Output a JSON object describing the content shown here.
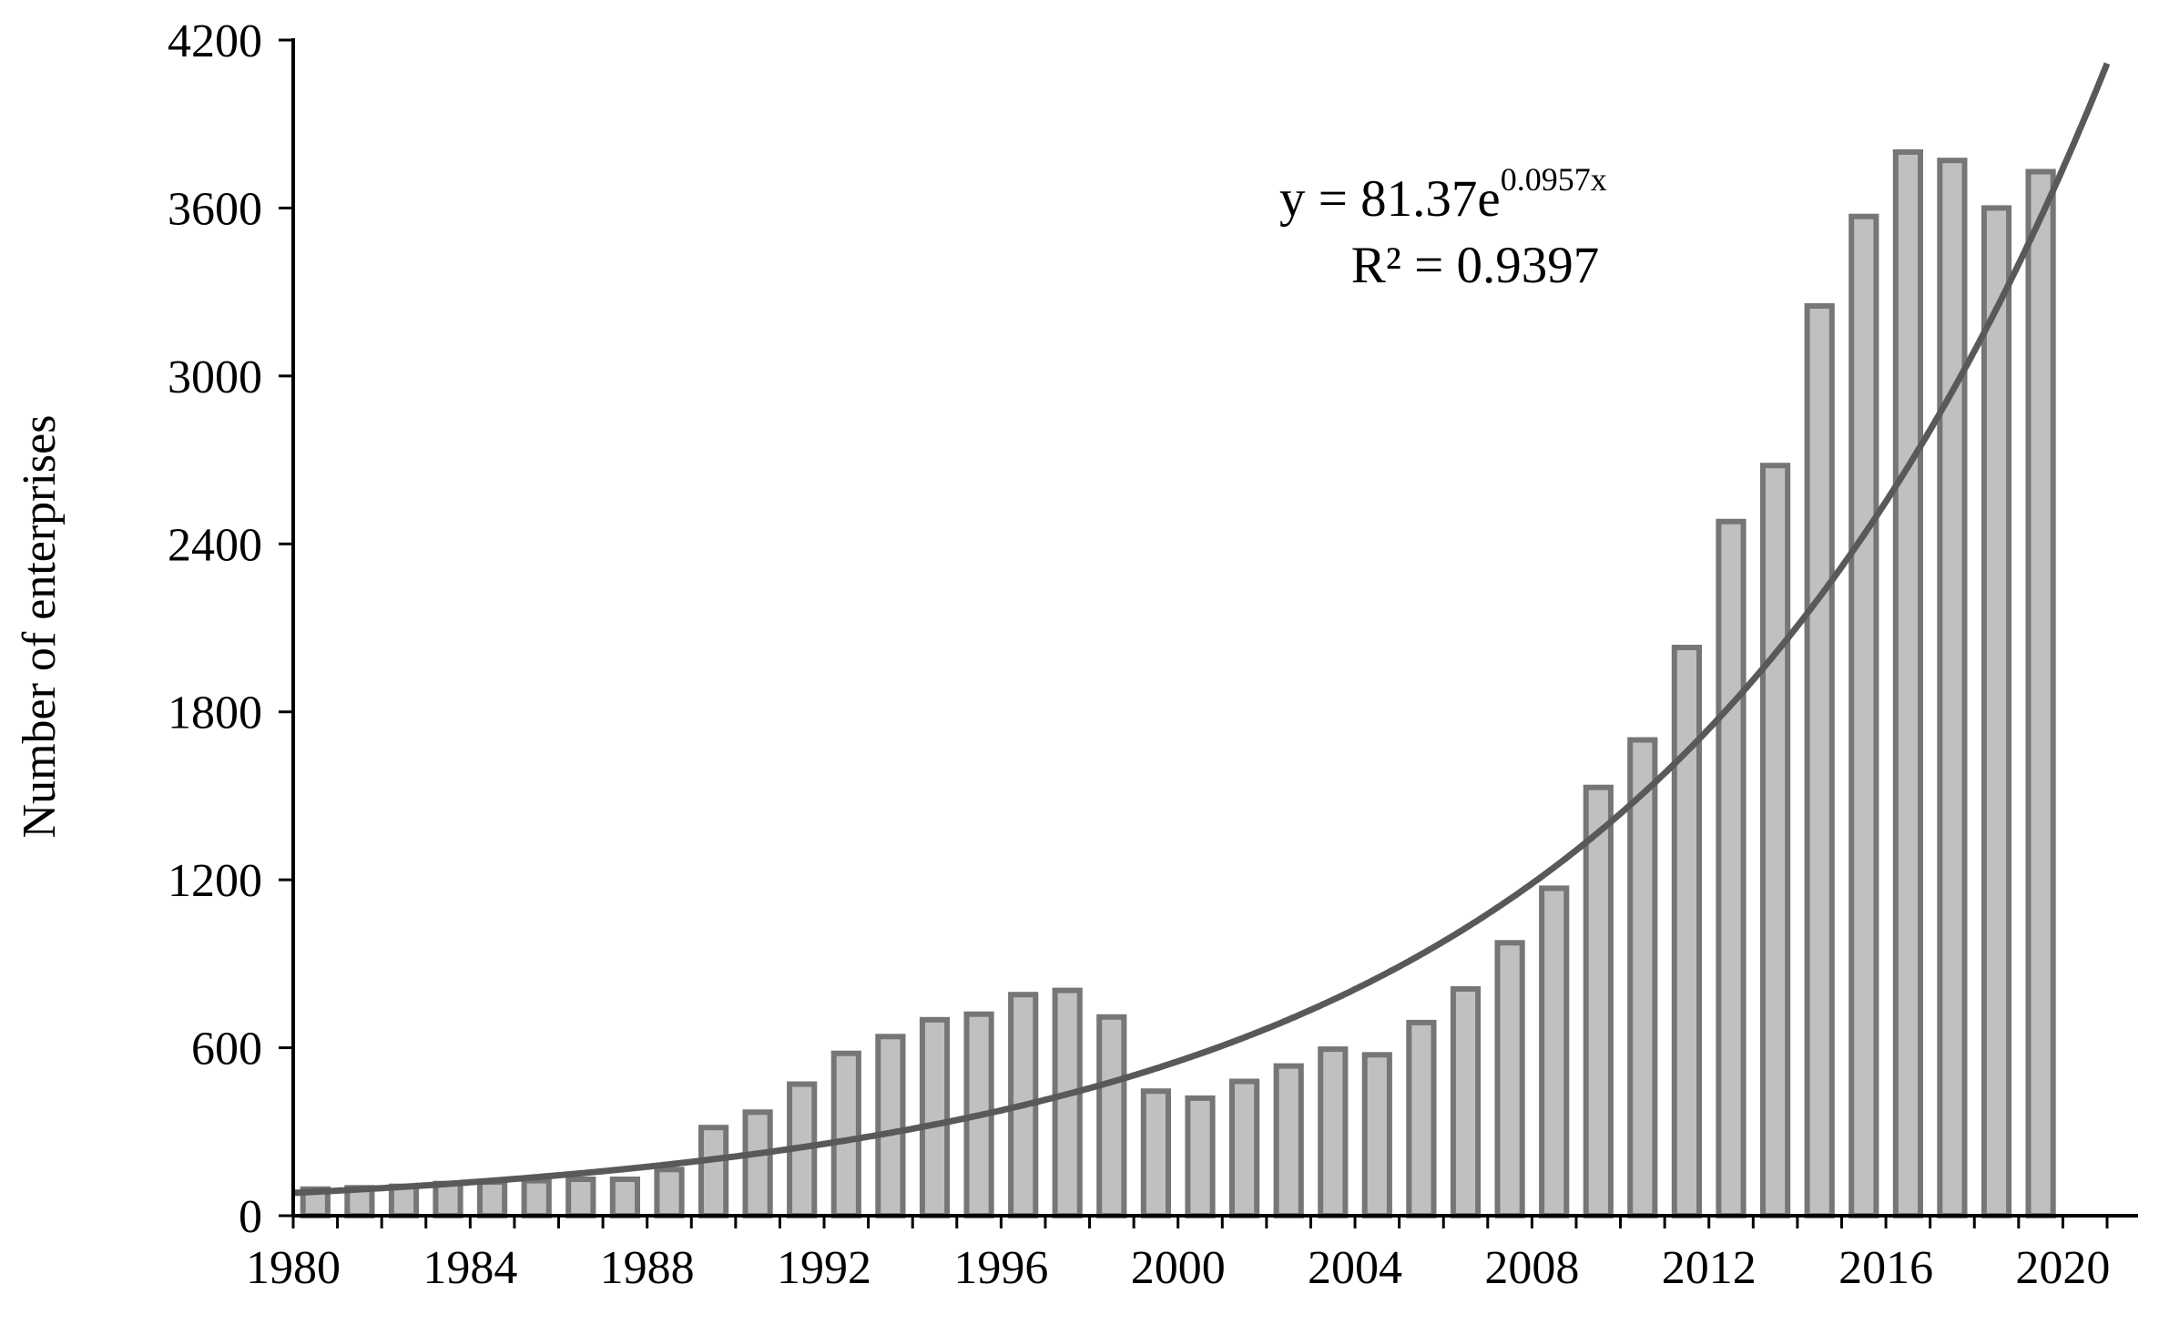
{
  "chart_data": {
    "type": "bar",
    "title": "",
    "xlabel": "",
    "ylabel": "Number of enterprises",
    "ylim": [
      0,
      4200
    ],
    "yticks": [
      0,
      600,
      1200,
      1800,
      2400,
      3000,
      3600,
      4200
    ],
    "xticks": [
      1980,
      1984,
      1988,
      1992,
      1996,
      2000,
      2004,
      2008,
      2012,
      2016,
      2020
    ],
    "xlim": [
      1980,
      2021
    ],
    "grid": false,
    "legend": "none",
    "categories": [
      1981,
      1982,
      1983,
      1984,
      1985,
      1986,
      1987,
      1988,
      1989,
      1990,
      1991,
      1992,
      1993,
      1994,
      1995,
      1996,
      1997,
      1998,
      1999,
      2000,
      2001,
      2002,
      2003,
      2004,
      2005,
      2006,
      2007,
      2008,
      2009,
      2010,
      2011,
      2012,
      2013,
      2014,
      2015,
      2016,
      2017,
      2018,
      2019,
      2020
    ],
    "values": [
      95,
      100,
      105,
      115,
      120,
      125,
      130,
      130,
      165,
      315,
      370,
      470,
      580,
      640,
      700,
      720,
      790,
      805,
      710,
      445,
      420,
      480,
      535,
      595,
      575,
      690,
      810,
      975,
      1170,
      1530,
      1700,
      2030,
      2480,
      2680,
      3250,
      3570,
      3800,
      3770,
      3600,
      3730
    ],
    "bar_fill": "#c0c0c0",
    "bar_stroke": "#767676",
    "trendline": {
      "type": "exponential",
      "a": 81.37,
      "b": 0.0957,
      "x0": 1980,
      "color": "#595959",
      "equation_base": "y = 81.37e",
      "equation_exponent": "0.0957x",
      "r_squared": "R² = 0.9397"
    }
  }
}
